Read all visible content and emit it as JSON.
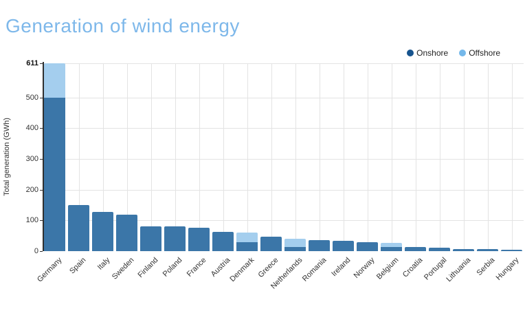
{
  "title": "Generation of wind energy",
  "legend": {
    "items": [
      {
        "label": "Onshore",
        "color": "#17548E"
      },
      {
        "label": "Offshore",
        "color": "#74B8EA"
      }
    ]
  },
  "colors": {
    "title": "#7EB8EA",
    "onshore_bar": "#3B76A8",
    "offshore_bar": "#A4CEEE",
    "gridline": "#E3E3E3",
    "axis_line": "#2F2F2F",
    "tick_text": "#333333"
  },
  "chart_data": {
    "type": "bar",
    "stacked": true,
    "title": "Generation of wind energy",
    "xlabel": "",
    "ylabel": "Total generation (GWh)",
    "categories": [
      "Germany",
      "Spain",
      "Italy",
      "Sweden",
      "Finland",
      "Poland",
      "France",
      "Austria",
      "Denmark",
      "Greece",
      "Netherlands",
      "Romania",
      "Ireland",
      "Norway",
      "Belgium",
      "Croatia",
      "Portugal",
      "Lithuania",
      "Serbia",
      "Hungary"
    ],
    "series": [
      {
        "name": "Onshore",
        "color": "#3B76A8",
        "legend_color": "#17548E",
        "values": [
          500,
          150,
          127,
          118,
          81,
          81,
          76,
          62,
          28,
          47,
          13,
          35,
          33,
          29,
          13,
          13,
          11,
          7,
          7,
          5
        ]
      },
      {
        "name": "Offshore",
        "color": "#A4CEEE",
        "legend_color": "#74B8EA",
        "values": [
          111,
          0,
          0,
          0,
          0,
          0,
          0,
          0,
          32,
          0,
          27,
          0,
          0,
          0,
          14,
          0,
          0,
          0,
          0,
          0
        ]
      }
    ],
    "totals_label_max": 611,
    "yticks": [
      0,
      100,
      200,
      300,
      400,
      500
    ],
    "ymax_tick": 611,
    "ylim": [
      0,
      611
    ],
    "grid": true,
    "legend_position": "top-right"
  }
}
